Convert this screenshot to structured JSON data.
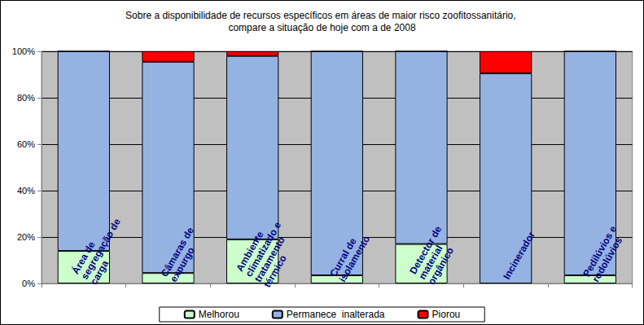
{
  "chart_data": {
    "type": "bar",
    "title": "Sobre a disponibilidade de recursos específicos em áreas de maior risco zoofitossanitário, compare a situação de hoje com a de 2008",
    "categories": [
      "Área de segregação de carga",
      "Câmaras de expurgo",
      "Ambiente climatizado e tratamento térmico",
      "Curral de isolamento",
      "Detector de material orgânico",
      "Incinerador",
      "Pedilúvios e rodolúvios"
    ],
    "series": [
      {
        "name": "Melhorou",
        "color": "#ccffcc",
        "values": [
          14,
          4.5,
          19,
          3.5,
          17,
          0,
          3.5
        ]
      },
      {
        "name": "Permanece  inalterada",
        "color": "#95b3e2",
        "values": [
          86,
          91,
          79,
          96.5,
          83,
          90.5,
          96.5
        ]
      },
      {
        "name": "Piorou",
        "color": "#ff0000",
        "values": [
          0,
          4.5,
          2,
          0,
          0,
          9.5,
          0
        ]
      }
    ],
    "ylim": [
      0,
      100
    ],
    "yticks": [
      {
        "value": 0,
        "label": "0%"
      },
      {
        "value": 20,
        "label": "20%"
      },
      {
        "value": 40,
        "label": "40%"
      },
      {
        "value": 60,
        "label": "60%"
      },
      {
        "value": 80,
        "label": "80%"
      },
      {
        "value": 100,
        "label": "100%"
      }
    ],
    "stacked": true,
    "grid": true,
    "legend": "bottom"
  }
}
